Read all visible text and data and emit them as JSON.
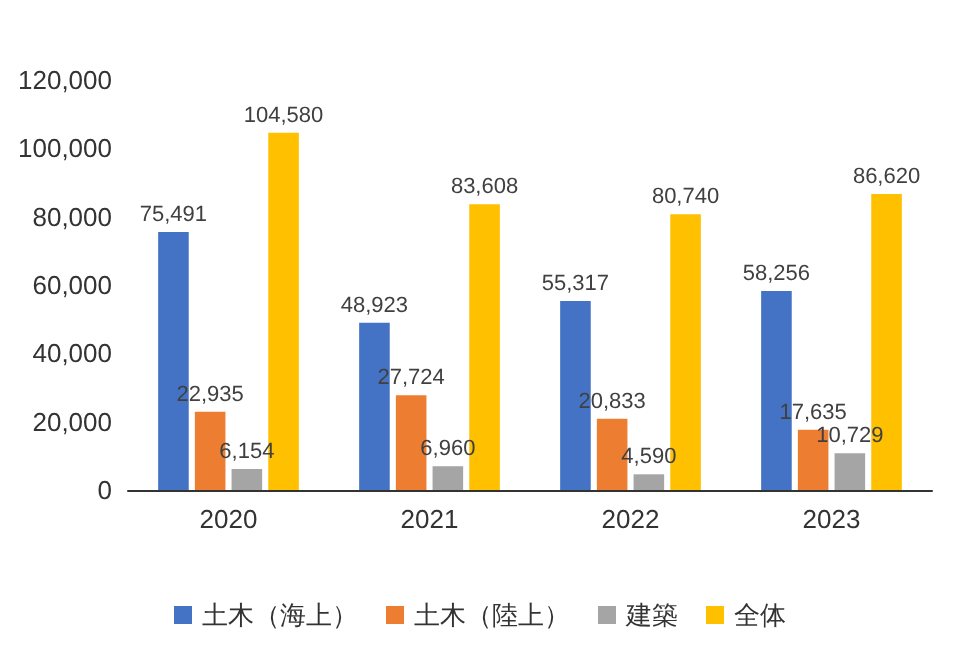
{
  "chart_data": {
    "type": "bar",
    "categories": [
      "2020",
      "2021",
      "2022",
      "2023"
    ],
    "series": [
      {
        "name": "土木（海上）",
        "color": "#4472c4",
        "values": [
          75491,
          48923,
          55317,
          58256
        ],
        "value_labels": [
          "75,491",
          "48,923",
          "55,317",
          "58,256"
        ]
      },
      {
        "name": "土木（陸上）",
        "color": "#ed7d31",
        "values": [
          22935,
          27724,
          20833,
          17635
        ],
        "value_labels": [
          "22,935",
          "27,724",
          "20,833",
          "17,635"
        ]
      },
      {
        "name": "建築",
        "color": "#a5a5a5",
        "values": [
          6154,
          6960,
          4590,
          10729
        ],
        "value_labels": [
          "6,154",
          "6,960",
          "4,590",
          "10,729"
        ]
      },
      {
        "name": "全体",
        "color": "#ffc000",
        "values": [
          104580,
          83608,
          80740,
          86620
        ],
        "value_labels": [
          "104,580",
          "83,608",
          "80,740",
          "86,620"
        ]
      }
    ],
    "ylim": [
      0,
      120000
    ],
    "yticks": [
      {
        "value": 0,
        "label": "0"
      },
      {
        "value": 20000,
        "label": "20,000"
      },
      {
        "value": 40000,
        "label": "40,000"
      },
      {
        "value": 60000,
        "label": "60,000"
      },
      {
        "value": 80000,
        "label": "80,000"
      },
      {
        "value": 100000,
        "label": "100,000"
      },
      {
        "value": 120000,
        "label": "120,000"
      }
    ],
    "grid": false,
    "legend": "bottom"
  }
}
